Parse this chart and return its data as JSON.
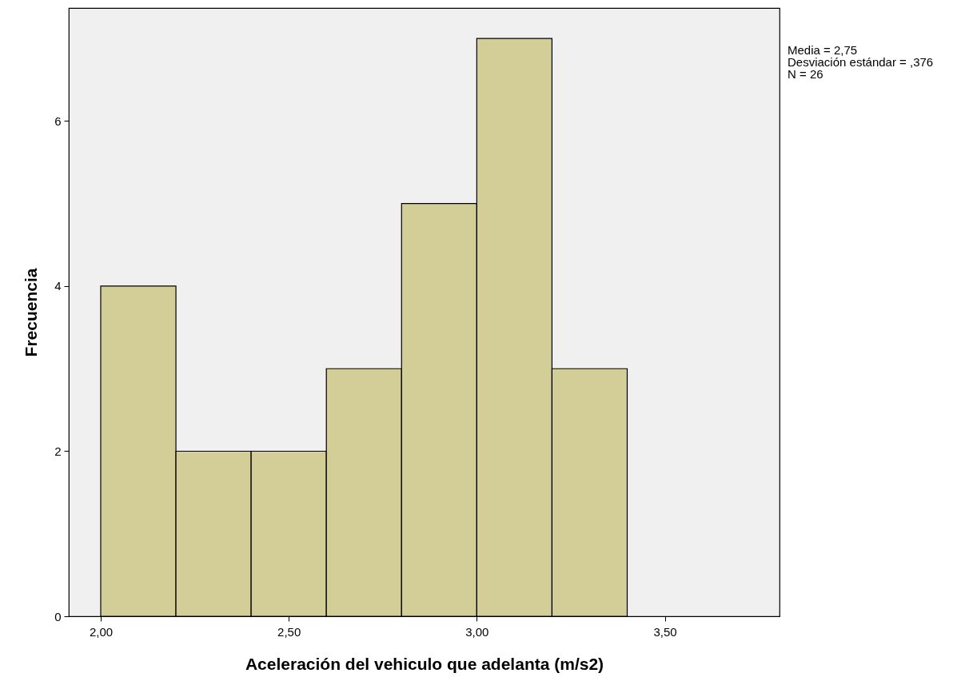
{
  "chart_data": {
    "type": "histogram",
    "xlabel": "Aceleración del vehiculo que adelanta (m/s2)",
    "ylabel": "Frecuencia",
    "bins": [
      2.0,
      2.2,
      2.4,
      2.6,
      2.8,
      3.0,
      3.2,
      3.4
    ],
    "values": [
      4,
      2,
      2,
      3,
      5,
      7,
      3
    ],
    "color": "#d3ce97",
    "xlim": [
      1.915,
      3.805
    ],
    "xticks": [
      {
        "value": 2.0,
        "label": "2,00"
      },
      {
        "value": 2.5,
        "label": "2,50"
      },
      {
        "value": 3.0,
        "label": "3,00"
      },
      {
        "value": 3.5,
        "label": "3,50"
      }
    ],
    "ylim": [
      0,
      7.37
    ],
    "yticks": [
      0,
      2,
      4,
      6
    ],
    "grid": false,
    "annotations": [
      "Media = 2,75",
      "Desviación estándar = ,376",
      "N = 26"
    ]
  }
}
